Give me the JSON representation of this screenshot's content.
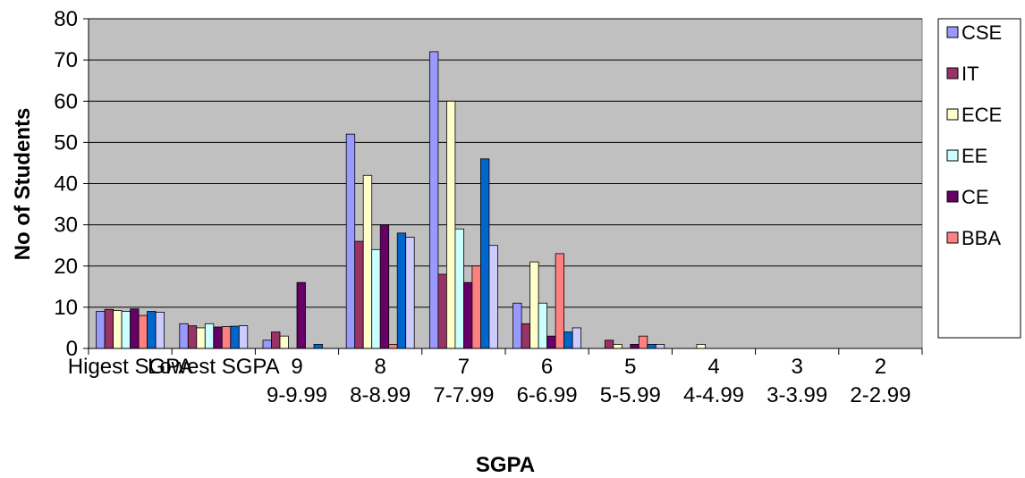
{
  "chart_data": {
    "type": "bar",
    "xlabel": "SGPA",
    "ylabel": "No of Students",
    "ylim": [
      0,
      80
    ],
    "y_ticks": [
      0,
      10,
      20,
      30,
      40,
      50,
      60,
      70,
      80
    ],
    "grid": true,
    "legend_position": "right",
    "categories": [
      [
        "Higest SGPA"
      ],
      [
        "Lowest SGPA"
      ],
      [
        "9",
        "9-9.99"
      ],
      [
        "8",
        "8-8.99"
      ],
      [
        "7",
        "7-7.99"
      ],
      [
        "6",
        "6-6.99"
      ],
      [
        "5",
        "5-5.99"
      ],
      [
        "4",
        "4-4.99"
      ],
      [
        "3",
        "3-3.99"
      ],
      [
        "2",
        "2-2.99"
      ]
    ],
    "series": [
      {
        "name": "CSE",
        "color": "#9999FF",
        "values": [
          9,
          6,
          2,
          52,
          72,
          11,
          0,
          0,
          0,
          0
        ]
      },
      {
        "name": "IT",
        "color": "#993366",
        "values": [
          9.5,
          5.5,
          4,
          26,
          18,
          6,
          2,
          0,
          0,
          0
        ]
      },
      {
        "name": "ECE",
        "color": "#FFFFCC",
        "values": [
          9.2,
          5,
          3,
          42,
          60,
          21,
          1,
          1,
          0,
          0
        ]
      },
      {
        "name": "EE",
        "color": "#CCFFFF",
        "values": [
          9,
          6,
          0,
          24,
          29,
          11,
          0,
          0,
          0,
          0
        ]
      },
      {
        "name": "CE",
        "color": "#660066",
        "values": [
          9.6,
          5.2,
          16,
          30,
          16,
          3,
          1,
          0,
          0,
          0
        ]
      },
      {
        "name": "BBA",
        "color": "#FF8080",
        "values": [
          8,
          5.3,
          0,
          1,
          20,
          23,
          3,
          0,
          0,
          0
        ]
      },
      {
        "name": "",
        "color": "#0066CC",
        "values": [
          9,
          5.4,
          1,
          28,
          46,
          4,
          1,
          0,
          0,
          0
        ]
      },
      {
        "name": "",
        "color": "#CCCCFF",
        "values": [
          8.8,
          5.5,
          0,
          27,
          25,
          5,
          1,
          0,
          0,
          0
        ]
      }
    ]
  }
}
